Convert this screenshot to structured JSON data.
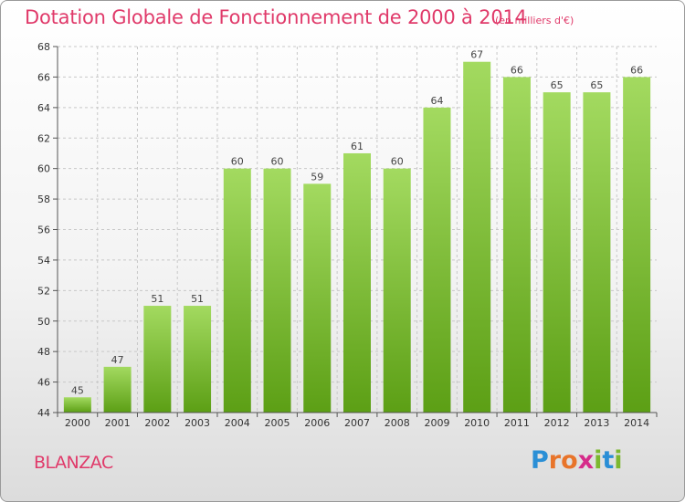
{
  "title": "Dotation Globale de Fonctionnement de 2000 à 2014",
  "subtitle": "(en milliers d'€)",
  "town": "BLANZAC",
  "logo": {
    "letters": [
      "P",
      "r",
      "o",
      "x",
      "i",
      "t",
      "i"
    ],
    "colors": [
      "#2a8fd6",
      "#e8742a",
      "#e8742a",
      "#d62b8a",
      "#7cb82f",
      "#2a8fd6",
      "#7cb82f"
    ]
  },
  "colors": {
    "title": "#e03a6a",
    "bar_light": "#9ed75a",
    "bar_dark": "#5fa417",
    "grid": "#c8c8c8"
  },
  "chart_data": {
    "type": "bar",
    "categories": [
      "2000",
      "2001",
      "2002",
      "2003",
      "2004",
      "2005",
      "2006",
      "2007",
      "2008",
      "2009",
      "2010",
      "2011",
      "2012",
      "2013",
      "2014"
    ],
    "values": [
      45,
      47,
      51,
      51,
      60,
      60,
      59,
      61,
      60,
      64,
      67,
      66,
      65,
      65,
      66
    ],
    "ylim": [
      44,
      68
    ],
    "yticks": [
      44,
      46,
      48,
      50,
      52,
      54,
      56,
      58,
      60,
      62,
      64,
      66,
      68
    ],
    "grid": true,
    "xlabel": "",
    "ylabel": ""
  }
}
